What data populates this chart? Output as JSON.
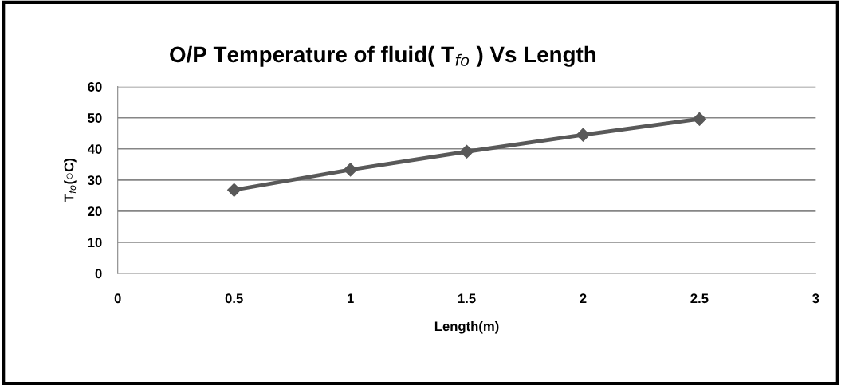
{
  "chart_data": {
    "type": "line",
    "title": "O/P Temperature of fluid( T$_{fo}$ ) Vs Length",
    "xlabel": "Length(m)",
    "ylabel": "T$_{fo}$(○C)",
    "x": [
      0.5,
      1,
      1.5,
      2,
      2.5
    ],
    "series": [
      {
        "color": "#595959",
        "values": [
          26.8,
          33.3,
          39.1,
          44.5,
          49.6
        ]
      }
    ],
    "xlim": [
      0,
      3
    ],
    "xticks": [
      0,
      0.5,
      1,
      1.5,
      2,
      2.5,
      3
    ],
    "ylim": [
      0,
      60
    ],
    "yticks": [
      0,
      10,
      20,
      30,
      40,
      50,
      60
    ],
    "grid": "y",
    "marker": "diamond",
    "line_style": "solid"
  }
}
